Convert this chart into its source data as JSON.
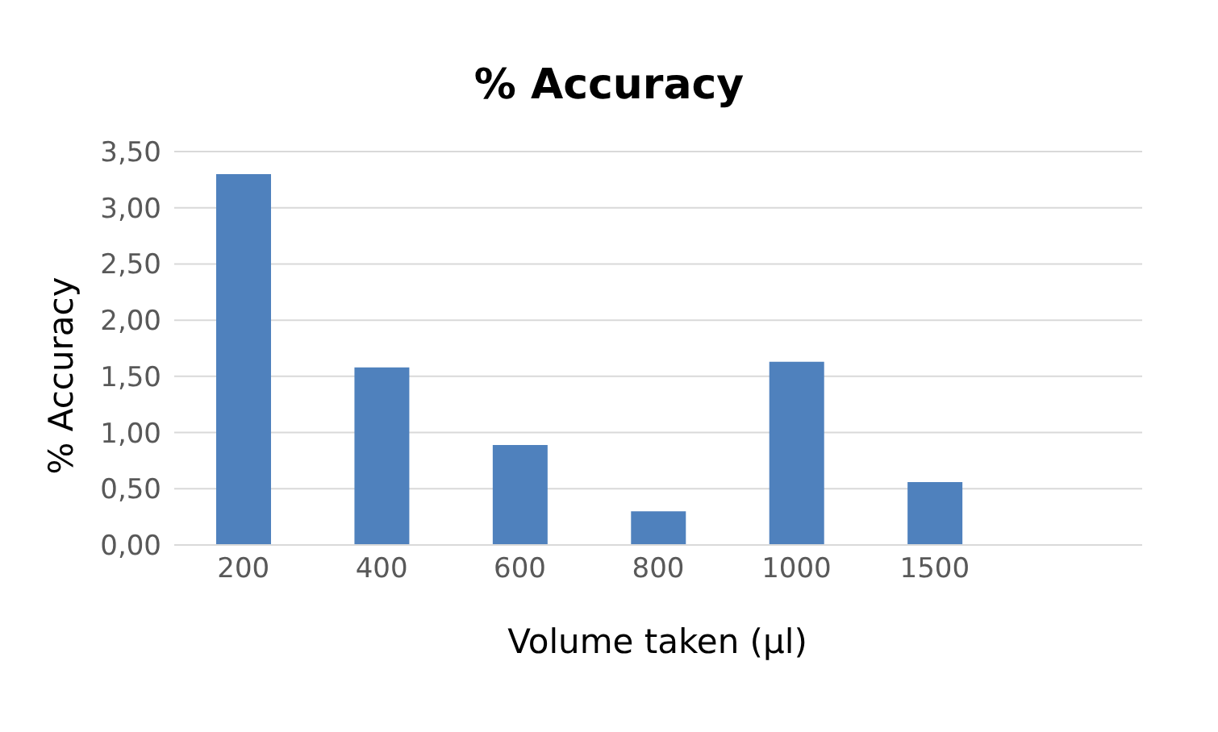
{
  "chart_data": {
    "type": "bar",
    "title": "% Accuracy",
    "xlabel": "Volume taken (µl)",
    "ylabel": "% Accuracy",
    "categories": [
      "200",
      "400",
      "600",
      "800",
      "1000",
      "1500",
      null
    ],
    "values": [
      3.3,
      1.58,
      0.89,
      0.3,
      1.63,
      0.56,
      null
    ],
    "color": "#4f81bd",
    "ylim": [
      0,
      3.5
    ],
    "yticks": [
      {
        "value": 0,
        "label": "0,00"
      },
      {
        "value": 0.5,
        "label": "0,50"
      },
      {
        "value": 1,
        "label": "1,00"
      },
      {
        "value": 1.5,
        "label": "1,50"
      },
      {
        "value": 2,
        "label": "2,00"
      },
      {
        "value": 2.5,
        "label": "2,50"
      },
      {
        "value": 3,
        "label": "3,00"
      },
      {
        "value": 3.5,
        "label": "3,50"
      }
    ],
    "grid": "y",
    "legend": false
  }
}
